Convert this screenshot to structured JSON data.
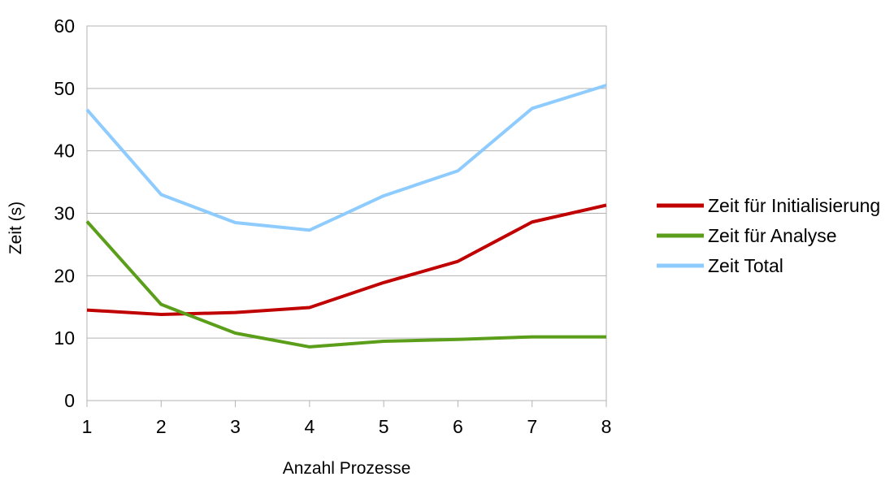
{
  "chart_data": {
    "type": "line",
    "x": [
      1,
      2,
      3,
      4,
      5,
      6,
      7,
      8
    ],
    "series": [
      {
        "name": "Zeit für Initialisierung",
        "color": "#c00000",
        "values": [
          14.5,
          13.8,
          14.1,
          14.9,
          18.9,
          22.3,
          28.6,
          31.3
        ]
      },
      {
        "name": "Zeit für Analyse",
        "color": "#5a9e1a",
        "values": [
          28.7,
          15.4,
          10.8,
          8.6,
          9.5,
          9.8,
          10.2,
          10.2
        ]
      },
      {
        "name": "Zeit Total",
        "color": "#8ecbff",
        "values": [
          46.6,
          33.0,
          28.5,
          27.3,
          32.8,
          36.8,
          46.8,
          50.5
        ]
      }
    ],
    "xlabel": "Anzahl Prozesse",
    "ylabel": "Zeit (s)",
    "ylim": [
      0,
      60
    ],
    "yticks": [
      0,
      10,
      20,
      30,
      40,
      50,
      60
    ],
    "grid": true,
    "legend_position": "right"
  }
}
